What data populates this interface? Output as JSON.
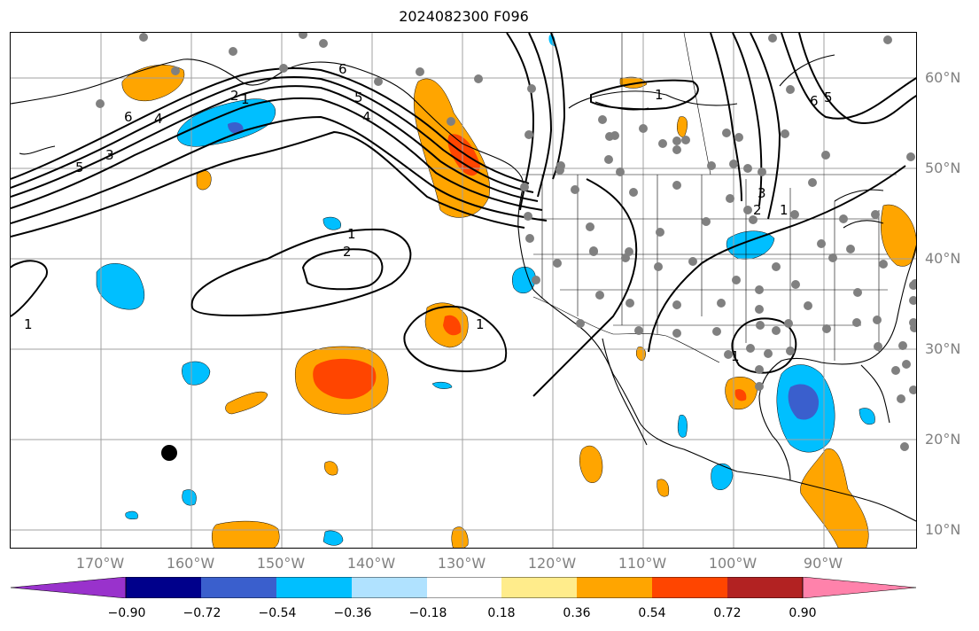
{
  "title": "2024082300 F096",
  "lat_labels": [
    "60°N",
    "50°N",
    "40°N",
    "30°N",
    "20°N",
    "10°N"
  ],
  "lon_labels": [
    "170°W",
    "160°W",
    "150°W",
    "140°W",
    "130°W",
    "120°W",
    "110°W",
    "100°W",
    "90°W"
  ],
  "contour_labels": [
    "6",
    "5",
    "4",
    "3",
    "2",
    "1",
    "2",
    "1",
    "1",
    "6",
    "5",
    "4",
    "1",
    "3",
    "2",
    "1",
    "1",
    "1",
    "6",
    "5"
  ],
  "colorbar": {
    "ticks": [
      "−0.90",
      "−0.72",
      "−0.54",
      "−0.36",
      "−0.18",
      "0.18",
      "0.36",
      "0.54",
      "0.72",
      "0.90"
    ],
    "colors": [
      "#9932CC",
      "#00008B",
      "#3A5FCD",
      "#00BFFF",
      "#B0E2FF",
      "#FFFFFF",
      "#FFEC8B",
      "#FFA500",
      "#FF4500",
      "#B22222",
      "#FF82AB"
    ]
  }
}
